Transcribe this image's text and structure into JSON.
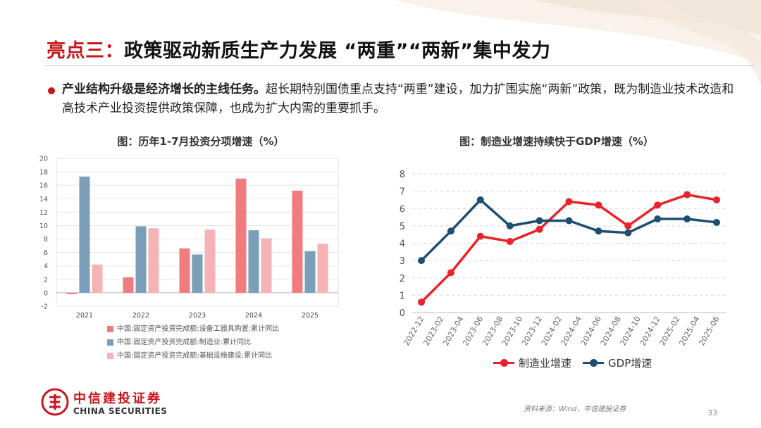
{
  "page": {
    "title_highlight": "亮点三：",
    "title_rest": "政策驱动新质生产力发展 “两重”“两新”集中发力",
    "bullet_bold": "产业结构升级是经济增长的主线任务。",
    "bullet_text": "超长期特别国债重点支持“两重”建设，加力扩围实施“两新”政策，既为制造业技术改造和高技术产业投资提供政策保障，也成为扩大内需的重要抓手。",
    "source": "资料来源：Wind，中信建投证券",
    "page_number": "33",
    "brand_cn": "中信建投证券",
    "brand_en": "CHINA SECURITIES",
    "accent_color": "#c8161d"
  },
  "chart_data": [
    {
      "type": "bar",
      "title": "图：历年1-7月投资分项增速（%）",
      "categories": [
        "2021",
        "2022",
        "2023",
        "2024",
        "2025"
      ],
      "ylim": [
        -2,
        20
      ],
      "yticks": [
        -2,
        0,
        2,
        4,
        6,
        8,
        10,
        12,
        14,
        16,
        18,
        20
      ],
      "grid": true,
      "legend_position": "bottom",
      "series": [
        {
          "name": "中国:固定资产投资完成额:设备工器具购置:累计同比",
          "color": "#f07c80",
          "values": [
            -0.2,
            2.3,
            6.6,
            17.0,
            15.2
          ]
        },
        {
          "name": "中国:固定资产投资完成额:制造业:累计同比",
          "color": "#7b9fb8",
          "values": [
            17.3,
            9.9,
            5.7,
            9.3,
            6.2
          ]
        },
        {
          "name": "中国:固定资产投资完成额:基础设施建设:累计同比",
          "color": "#f6b3b5",
          "values": [
            4.2,
            9.6,
            9.4,
            8.1,
            7.3
          ]
        }
      ]
    },
    {
      "type": "line",
      "title": "图：制造业增速持续快于GDP增速（%）",
      "x": [
        "2022-12",
        "2023-02",
        "2023-04",
        "2023-06",
        "2023-08",
        "2023-10",
        "2023-12",
        "2024-02",
        "2024-04",
        "2024-06",
        "2024-08",
        "2024-10",
        "2024-12",
        "2025-02",
        "2025-04",
        "2025-06"
      ],
      "ylim": [
        0,
        8
      ],
      "yticks": [
        0,
        1,
        2,
        3,
        4,
        5,
        6,
        7,
        8
      ],
      "grid": true,
      "legend_position": "bottom",
      "series": [
        {
          "name": "制造业增速",
          "color": "#e8232b",
          "points": [
            [
              "2022-12",
              0.6
            ],
            [
              "2023-03",
              2.3
            ],
            [
              "2023-06",
              4.4
            ],
            [
              "2023-09",
              4.1
            ],
            [
              "2023-12",
              4.8
            ],
            [
              "2024-03",
              6.4
            ],
            [
              "2024-06",
              6.2
            ],
            [
              "2024-09",
              5.0
            ],
            [
              "2024-12",
              6.2
            ],
            [
              "2025-03",
              6.8
            ],
            [
              "2025-06",
              6.5
            ]
          ]
        },
        {
          "name": "GDP增速",
          "color": "#1c4f72",
          "points": [
            [
              "2022-12",
              3.0
            ],
            [
              "2023-03",
              4.7
            ],
            [
              "2023-06",
              6.5
            ],
            [
              "2023-09",
              5.0
            ],
            [
              "2023-12",
              5.3
            ],
            [
              "2024-03",
              5.3
            ],
            [
              "2024-06",
              4.7
            ],
            [
              "2024-09",
              4.6
            ],
            [
              "2024-12",
              5.4
            ],
            [
              "2025-03",
              5.4
            ],
            [
              "2025-06",
              5.2
            ]
          ]
        }
      ]
    }
  ]
}
